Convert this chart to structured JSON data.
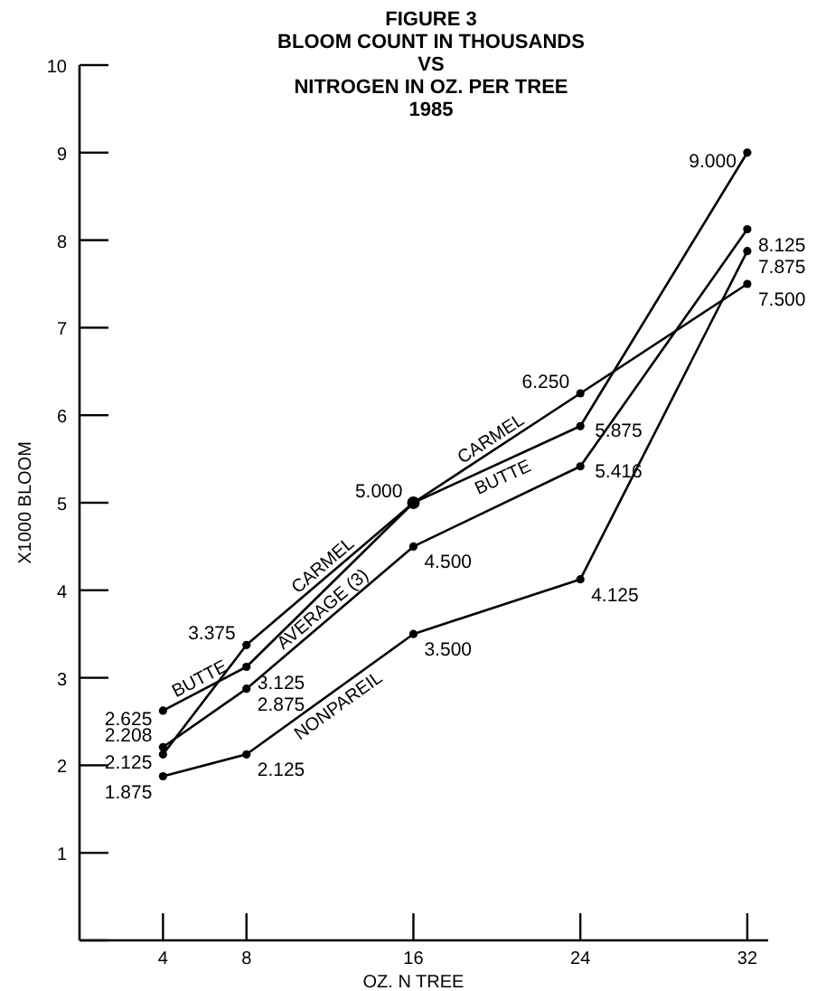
{
  "chart_data": {
    "type": "line",
    "title": "FIGURE 3\nBLOOM COUNT IN THOUSANDS\nVS\nNITROGEN IN OZ. PER TREE\n1985",
    "xlabel": "OZ. N TREE",
    "ylabel": "X1000 BLOOM",
    "x": [
      4,
      8,
      16,
      24,
      32
    ],
    "xlim": [
      0,
      33
    ],
    "xticks": [
      4,
      8,
      16,
      24,
      32
    ],
    "ylim": [
      0,
      10
    ],
    "yticks": [
      {
        "value": 0,
        "label": null
      },
      1,
      2,
      3,
      4,
      5,
      6,
      7,
      8,
      9,
      10
    ],
    "grid": false,
    "legend": false,
    "marker": "circle",
    "line_style": "solid",
    "series": [
      {
        "name": "CARMEL",
        "color": "#000000",
        "values": [
          2.125,
          3.375,
          5.0,
          6.25,
          7.5
        ],
        "value_labels": [
          "2.125",
          "3.375",
          "5.000",
          "6.250",
          "7.500"
        ]
      },
      {
        "name": "BUTTE",
        "color": "#000000",
        "values": [
          2.625,
          3.125,
          5.0,
          5.875,
          9.0
        ],
        "value_labels": [
          "2.625",
          "3.125",
          null,
          "5.875",
          "9.000"
        ]
      },
      {
        "name": "AVERAGE (3)",
        "color": "#000000",
        "values": [
          2.208,
          2.875,
          4.5,
          5.416,
          8.125
        ],
        "value_labels": [
          "2.208",
          "2.875",
          "4.500",
          "5.416",
          "8.125"
        ]
      },
      {
        "name": "NONPAREIL",
        "color": "#000000",
        "values": [
          1.875,
          2.125,
          3.5,
          4.125,
          7.875
        ],
        "value_labels": [
          "1.875",
          "2.125",
          "3.500",
          "4.125",
          "7.875"
        ]
      }
    ]
  }
}
